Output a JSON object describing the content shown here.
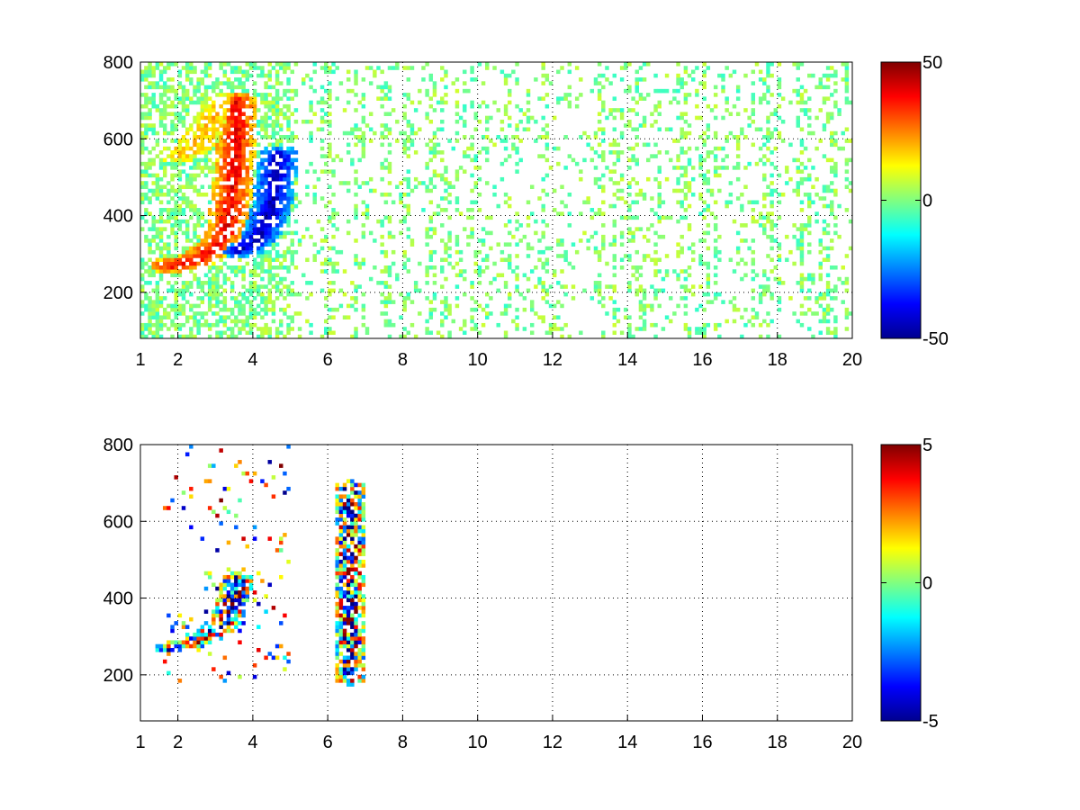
{
  "figure": {
    "background": "#ffffff",
    "colormap": "jet",
    "colormap_stops": [
      "#00008f",
      "#0000ff",
      "#00ffff",
      "#80ff80",
      "#ffff00",
      "#ff0000",
      "#800000"
    ]
  },
  "chart_data": [
    {
      "type": "heatmap",
      "title": "",
      "xlabel": "",
      "ylabel": "",
      "xlim": [
        1,
        20
      ],
      "ylim": [
        80,
        800
      ],
      "grid": true,
      "grid_style": "dotted",
      "x_ticks": [
        1,
        2,
        4,
        6,
        8,
        10,
        12,
        14,
        16,
        18,
        20
      ],
      "x_tick_labels": [
        "1",
        "2",
        "4",
        "6",
        "8",
        "10",
        "12",
        "14",
        "16",
        "18",
        "20"
      ],
      "y_ticks": [
        200,
        400,
        600,
        800
      ],
      "y_tick_labels": [
        "200",
        "400",
        "600",
        "800"
      ],
      "colorbar": {
        "min": -50,
        "max": 50,
        "ticks": [
          -50,
          0,
          50
        ],
        "tick_labels": [
          "-50",
          "0",
          "50"
        ]
      },
      "features": [
        {
          "description": "positive ridge",
          "x": [
            1.8,
            2.2,
            2.6,
            3.0,
            3.3,
            3.5,
            3.6
          ],
          "y": [
            270,
            275,
            290,
            320,
            360,
            500,
            700
          ],
          "value": 40
        },
        {
          "description": "negative ridge",
          "x": [
            3.6,
            3.9,
            4.2,
            4.5,
            4.7
          ],
          "y": [
            310,
            320,
            350,
            420,
            560
          ],
          "value": -45
        },
        {
          "description": "secondary positive arc",
          "x": [
            2.0,
            2.4,
            2.8,
            3.2
          ],
          "y": [
            560,
            580,
            620,
            700
          ],
          "value": 20
        }
      ],
      "noise_level": 8
    },
    {
      "type": "heatmap",
      "title": "",
      "xlabel": "",
      "ylabel": "",
      "xlim": [
        1,
        20
      ],
      "ylim": [
        80,
        800
      ],
      "grid": true,
      "grid_style": "dotted",
      "x_ticks": [
        1,
        2,
        4,
        6,
        8,
        10,
        12,
        14,
        16,
        18,
        20
      ],
      "x_tick_labels": [
        "1",
        "2",
        "4",
        "6",
        "8",
        "10",
        "12",
        "14",
        "16",
        "18",
        "20"
      ],
      "y_ticks": [
        200,
        400,
        600,
        800
      ],
      "y_tick_labels": [
        "200",
        "400",
        "600",
        "800"
      ],
      "colorbar": {
        "min": -5,
        "max": 5,
        "ticks": [
          -5,
          0,
          5
        ],
        "tick_labels": [
          "-5",
          "0",
          "5"
        ]
      },
      "features": [
        {
          "description": "mixed ridge",
          "x": [
            1.8,
            2.3,
            2.8,
            3.3,
            3.6
          ],
          "y": [
            270,
            275,
            300,
            340,
            450
          ],
          "value": 0
        },
        {
          "description": "vertical streak",
          "x": [
            6.6,
            6.6
          ],
          "y": [
            190,
            690
          ],
          "value": 0
        }
      ],
      "noise_level": 5
    }
  ]
}
